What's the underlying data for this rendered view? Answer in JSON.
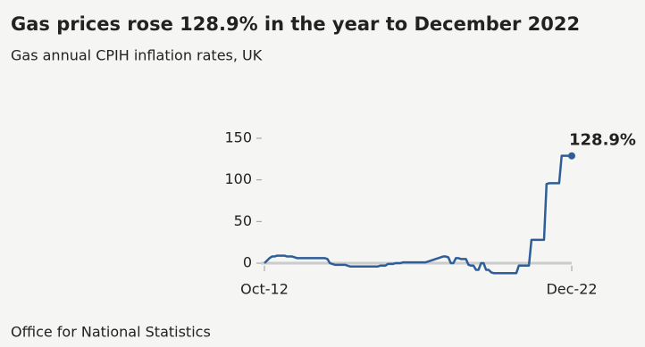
{
  "chart_data": {
    "type": "line",
    "title": "Gas prices rose 128.9% in the year to December 2022",
    "subtitle": "Gas annual CPIH inflation rates, UK",
    "source": "Office for National Statistics",
    "categories": [
      "Oct-12",
      null,
      null,
      null,
      null,
      null,
      null,
      null,
      null,
      null,
      null,
      null,
      null,
      null,
      null,
      null,
      null,
      null,
      null,
      null,
      null,
      null,
      null,
      null,
      null,
      null,
      null,
      null,
      null,
      null,
      null,
      null,
      null,
      null,
      null,
      null,
      null,
      null,
      null,
      null,
      null,
      null,
      null,
      null,
      null,
      null,
      null,
      null,
      null,
      null,
      null,
      null,
      null,
      null,
      null,
      null,
      null,
      null,
      null,
      null,
      null,
      null,
      null,
      null,
      null,
      null,
      null,
      null,
      null,
      null,
      null,
      null,
      null,
      null,
      null,
      null,
      null,
      null,
      null,
      null,
      null,
      null,
      null,
      null,
      null,
      null,
      null,
      null,
      null,
      null,
      null,
      null,
      null,
      null,
      null,
      null,
      null,
      null,
      null,
      null,
      null,
      null,
      null,
      null,
      null,
      null,
      null,
      null,
      null,
      null,
      null,
      null,
      null,
      null,
      null,
      null,
      null,
      null,
      null,
      null,
      null,
      null,
      "Dec-22"
    ],
    "values": [
      0,
      3,
      6,
      8,
      8,
      9,
      9,
      9,
      9,
      8,
      8,
      8,
      7,
      6,
      6,
      6,
      6,
      6,
      6,
      6,
      6,
      6,
      6,
      6,
      6,
      5,
      0,
      -1,
      -2,
      -2,
      -2,
      -2,
      -2,
      -3,
      -4,
      -4,
      -4,
      -4,
      -4,
      -4,
      -4,
      -4,
      -4,
      -4,
      -4,
      -4,
      -3,
      -3,
      -3,
      -1,
      -1,
      -1,
      0,
      0,
      0,
      1,
      1,
      1,
      1,
      1,
      1,
      1,
      1,
      1,
      1,
      2,
      3,
      4,
      5,
      6,
      7,
      8,
      8,
      7,
      0,
      0,
      6,
      6,
      5,
      5,
      5,
      -2,
      -3,
      -3,
      -8,
      -8,
      0,
      0,
      -8,
      -8,
      -11,
      -12,
      -12,
      -12,
      -12,
      -12,
      -12,
      -12,
      -12,
      -12,
      -12,
      -3,
      -3,
      -3,
      -3,
      -3,
      28,
      28,
      28,
      28,
      28,
      28,
      95,
      96,
      96,
      96,
      96,
      96,
      129,
      129,
      129,
      129,
      128.9
    ],
    "value_labels": [
      null,
      null,
      null,
      null,
      null,
      null,
      null,
      null,
      null,
      null,
      null,
      null,
      null,
      null,
      null,
      null,
      null,
      null,
      null,
      null,
      null,
      null,
      null,
      null,
      null,
      null,
      null,
      null,
      null,
      null,
      null,
      null,
      null,
      null,
      null,
      null,
      null,
      null,
      null,
      null,
      null,
      null,
      null,
      null,
      null,
      null,
      null,
      null,
      null,
      null,
      null,
      null,
      null,
      null,
      null,
      null,
      null,
      null,
      null,
      null,
      null,
      null,
      null,
      null,
      null,
      null,
      null,
      null,
      null,
      null,
      null,
      null,
      null,
      null,
      null,
      null,
      null,
      null,
      null,
      null,
      null,
      null,
      null,
      null,
      null,
      null,
      null,
      null,
      null,
      null,
      null,
      null,
      null,
      null,
      null,
      null,
      null,
      null,
      null,
      null,
      null,
      null,
      null,
      null,
      null,
      null,
      null,
      null,
      null,
      null,
      null,
      null,
      null,
      null,
      null,
      null,
      null,
      null,
      null,
      null,
      null,
      null,
      "128.9%"
    ],
    "color": "#2e5e99",
    "ylim": [
      -15,
      150
    ],
    "yticks": [
      0,
      50,
      100,
      150
    ]
  }
}
